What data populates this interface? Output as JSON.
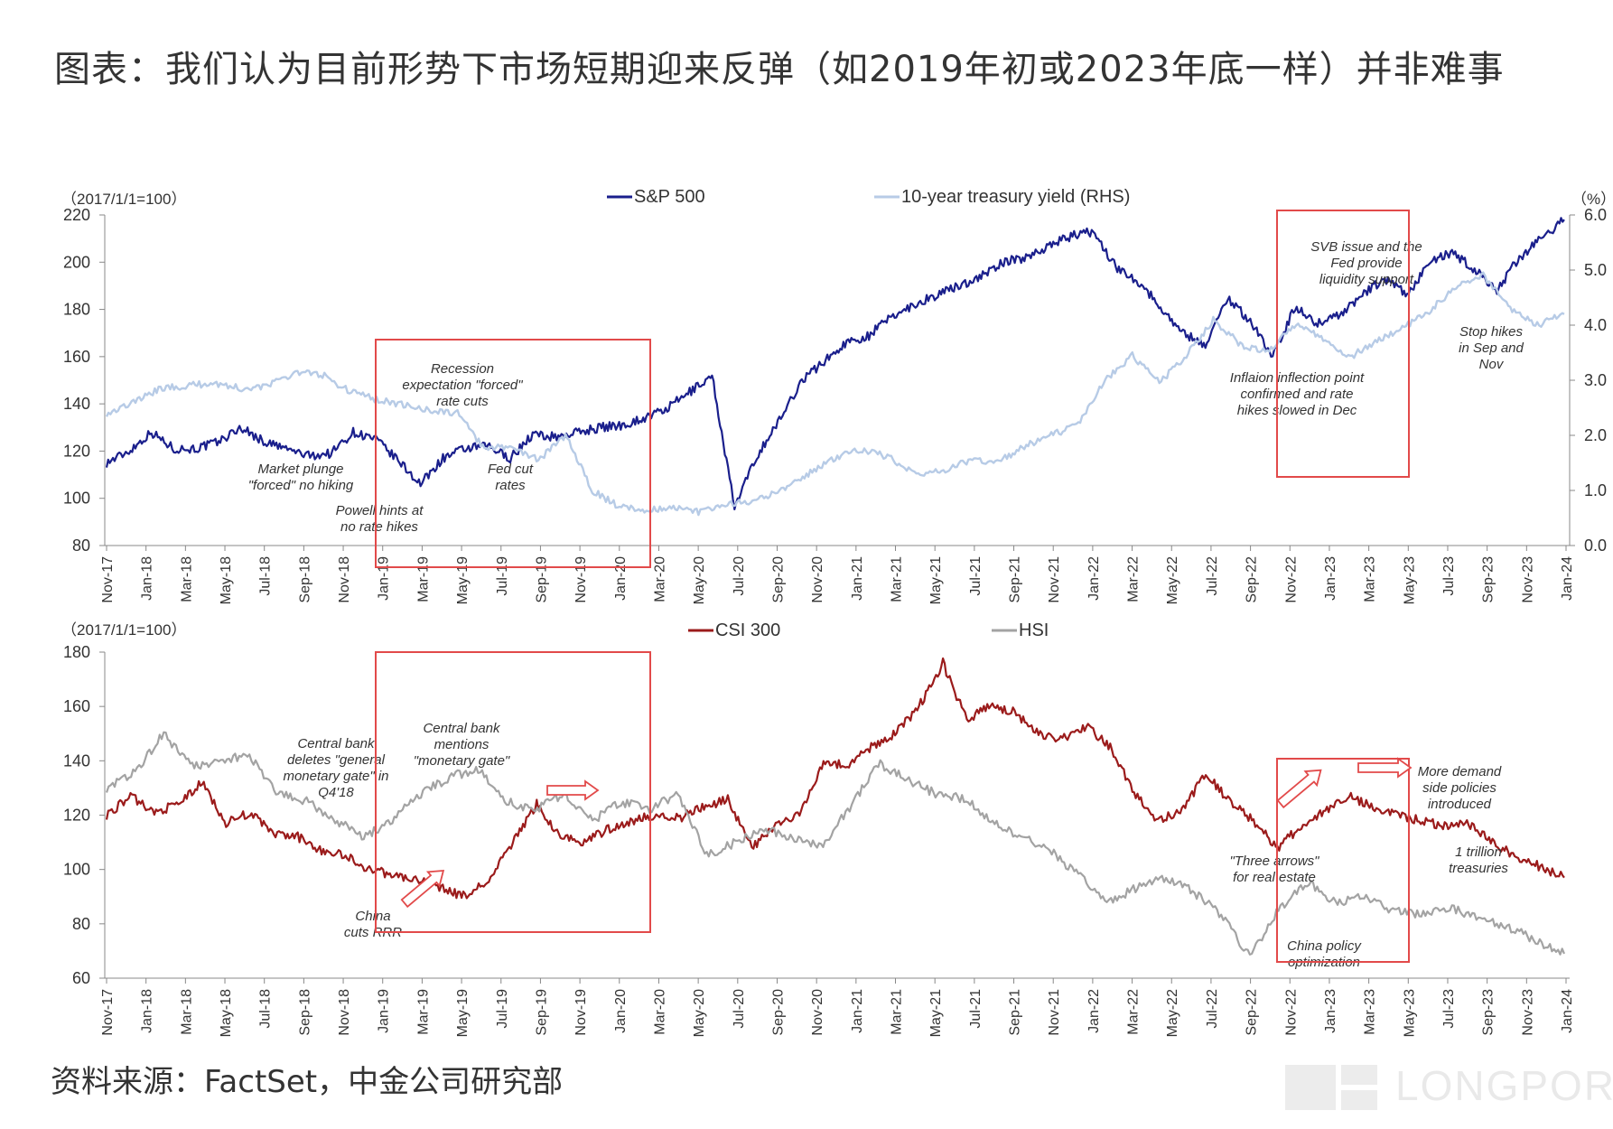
{
  "title": "图表：我们认为目前形势下市场短期迎来反弹（如2019年初或2023年底一样）并非难事",
  "source": "资料来源：FactSet，中金公司研究部",
  "watermark": "LONGPORT",
  "chart_data": [
    {
      "type": "line",
      "left_unit": "（2017/1/1=100）",
      "right_unit": "（%）",
      "y_ticks": [
        "220",
        "200",
        "180",
        "160",
        "140",
        "120",
        "100",
        "80"
      ],
      "y2_ticks": [
        "6.0",
        "5.0",
        "4.0",
        "3.0",
        "2.0",
        "1.0",
        "0.0"
      ],
      "ylim": [
        80,
        220
      ],
      "y2lim": [
        0,
        6
      ],
      "x_labels": [
        "Nov-17",
        "Jan-18",
        "Mar-18",
        "May-18",
        "Jul-18",
        "Sep-18",
        "Nov-18",
        "Jan-19",
        "Mar-19",
        "May-19",
        "Jul-19",
        "Sep-19",
        "Nov-19",
        "Jan-20",
        "Mar-20",
        "May-20",
        "Jul-20",
        "Sep-20",
        "Nov-20",
        "Jan-21",
        "Mar-21",
        "May-21",
        "Jul-21",
        "Sep-21",
        "Nov-21",
        "Jan-22",
        "Mar-22",
        "May-22",
        "Jul-22",
        "Sep-22",
        "Nov-22",
        "Jan-23",
        "Mar-23",
        "May-23",
        "Jul-23",
        "Sep-23",
        "Nov-23",
        "Jan-24"
      ],
      "series": [
        {
          "name": "S&P 500",
          "color": "#1a1f8c",
          "axis": "left",
          "values": [
            115,
            120,
            128,
            121,
            121,
            124,
            130,
            124,
            121,
            118,
            119,
            128,
            125,
            116,
            106,
            117,
            121,
            122,
            117,
            127,
            126,
            128,
            130,
            131,
            134,
            138,
            145,
            152,
            96,
            118,
            133,
            150,
            158,
            166,
            169,
            177,
            182,
            186,
            190,
            194,
            200,
            202,
            207,
            211,
            213,
            198,
            192,
            181,
            170,
            165,
            185,
            175,
            160,
            181,
            174,
            178,
            186,
            193,
            186,
            200,
            204,
            197,
            188,
            202,
            210,
            218
          ]
        },
        {
          "name": "10-year treasury yield (RHS)",
          "color": "#b7cbe6",
          "axis": "right",
          "values": [
            2.4,
            2.6,
            2.85,
            2.9,
            2.95,
            2.85,
            2.9,
            3.15,
            3.1,
            2.8,
            2.65,
            2.55,
            2.45,
            2.4,
            1.75,
            1.8,
            1.55,
            2.0,
            1.0,
            0.7,
            0.65,
            0.7,
            0.6,
            0.75,
            0.8,
            1.0,
            1.3,
            1.6,
            1.75,
            1.6,
            1.3,
            1.35,
            1.55,
            1.5,
            1.8,
            2.0,
            2.2,
            3.0,
            3.45,
            2.95,
            3.45,
            4.1,
            3.65,
            3.5,
            4.0,
            3.8,
            3.4,
            3.7,
            3.95,
            4.25,
            4.7,
            4.9,
            4.3,
            4.0,
            4.2
          ]
        }
      ],
      "annotations": [
        [
          "Recession",
          "expectation \"forced\"",
          "rate cuts"
        ],
        [
          "Market plunge",
          "\"forced\" no hiking"
        ],
        [
          "Powell hints at",
          "no rate hikes"
        ],
        [
          "Fed cut",
          "rates"
        ],
        [
          "SVB issue and the",
          "Fed provide",
          "liquidity support"
        ],
        [
          "Stop hikes",
          "in Sep and",
          "Nov"
        ],
        [
          "Inflaion inflection point",
          "confirmed and rate",
          "hikes slowed in Dec"
        ]
      ]
    },
    {
      "type": "line",
      "left_unit": "（2017/1/1=100）",
      "y_ticks": [
        "180",
        "160",
        "140",
        "120",
        "100",
        "80",
        "60"
      ],
      "ylim": [
        60,
        180
      ],
      "x_labels": [
        "Nov-17",
        "Jan-18",
        "Mar-18",
        "May-18",
        "Jul-18",
        "Sep-18",
        "Nov-18",
        "Jan-19",
        "Mar-19",
        "May-19",
        "Jul-19",
        "Sep-19",
        "Nov-19",
        "Jan-20",
        "Mar-20",
        "May-20",
        "Jul-20",
        "Sep-20",
        "Nov-20",
        "Jan-21",
        "Mar-21",
        "May-21",
        "Jul-21",
        "Sep-21",
        "Nov-21",
        "Jan-22",
        "Mar-22",
        "May-22",
        "Jul-22",
        "Sep-22",
        "Nov-22",
        "Jan-23",
        "Mar-23",
        "May-23",
        "Jul-23",
        "Sep-23",
        "Nov-23",
        "Jan-24"
      ],
      "series": [
        {
          "name": "CSI 300",
          "color": "#9b1b1b",
          "values": [
            120,
            127,
            121,
            124,
            132,
            117,
            121,
            113,
            112,
            107,
            105,
            100,
            98,
            96,
            93,
            90,
            96,
            110,
            124,
            112,
            110,
            115,
            118,
            120,
            119,
            123,
            126,
            108,
            116,
            120,
            140,
            138,
            145,
            150,
            160,
            176,
            155,
            160,
            158,
            150,
            148,
            153,
            145,
            128,
            118,
            122,
            135,
            125,
            118,
            108,
            116,
            122,
            127,
            123,
            120,
            118,
            116,
            117,
            110,
            105,
            101,
            97
          ]
        },
        {
          "name": "HSI",
          "color": "#a3a3a3",
          "values": [
            130,
            136,
            150,
            138,
            140,
            142,
            128,
            125,
            118,
            112,
            118,
            128,
            134,
            137,
            125,
            122,
            128,
            118,
            125,
            122,
            128,
            105,
            110,
            115,
            112,
            108,
            123,
            139,
            133,
            128,
            126,
            118,
            112,
            107,
            98,
            88,
            93,
            97,
            92,
            83,
            68,
            85,
            95,
            88,
            90,
            85,
            83,
            86,
            82,
            79,
            74,
            69
          ]
        }
      ],
      "annotations": [
        [
          "Central bank",
          "deletes \"general",
          "monetary gate\" in",
          "Q4'18"
        ],
        [
          "Central bank",
          "mentions",
          "\"monetary gate\""
        ],
        [
          "China",
          "cuts RRR"
        ],
        [
          "\"Three arrows\"",
          "for real estate"
        ],
        [
          "China policy",
          "optimization"
        ],
        [
          "More demand",
          "side policies",
          "introduced"
        ],
        [
          "1 trillion",
          "treasuries"
        ]
      ]
    }
  ]
}
